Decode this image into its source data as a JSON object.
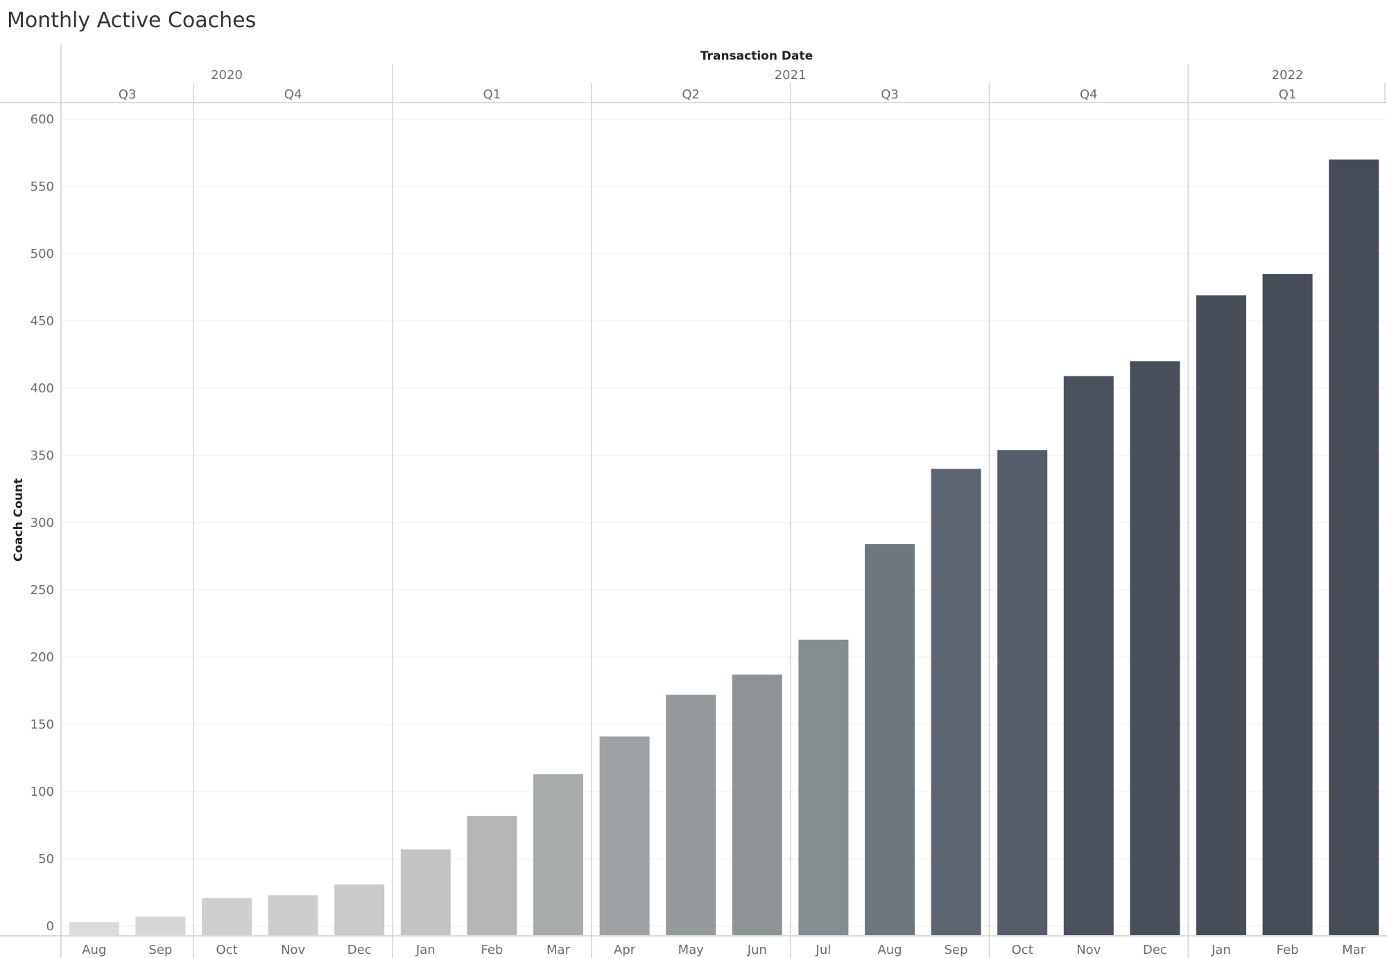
{
  "title": "Monthly Active Coaches",
  "chart_data": {
    "type": "bar",
    "title": "Monthly Active Coaches",
    "xlabel": "Transaction Date",
    "ylabel": "Coach Count",
    "ylim": [
      0,
      600
    ],
    "yticks": [
      0,
      50,
      100,
      150,
      200,
      250,
      300,
      350,
      400,
      450,
      500,
      550,
      600
    ],
    "grid": true,
    "years": [
      "2020",
      "2021",
      "2022"
    ],
    "quarters": [
      {
        "label": "Q3",
        "year": "2020"
      },
      {
        "label": "Q4",
        "year": "2020"
      },
      {
        "label": "Q1",
        "year": "2021"
      },
      {
        "label": "Q2",
        "year": "2021"
      },
      {
        "label": "Q3",
        "year": "2021"
      },
      {
        "label": "Q4",
        "year": "2021"
      },
      {
        "label": "Q1",
        "year": "2022"
      }
    ],
    "categories": [
      "Aug",
      "Sep",
      "Oct",
      "Nov",
      "Dec",
      "Jan",
      "Feb",
      "Mar",
      "Apr",
      "May",
      "Jun",
      "Jul",
      "Aug",
      "Sep",
      "Oct",
      "Nov",
      "Dec",
      "Jan",
      "Feb",
      "Mar"
    ],
    "values": [
      3,
      7,
      21,
      23,
      31,
      57,
      82,
      113,
      141,
      172,
      187,
      213,
      284,
      340,
      354,
      409,
      420,
      469,
      485,
      570
    ],
    "colors": [
      "#dcdcdc",
      "#d6d6d6",
      "#cfcfcf",
      "#cdcdcd",
      "#c9caca",
      "#c2c3c3",
      "#b5b6b7",
      "#a8abac",
      "#9ea2a4",
      "#94999b",
      "#8e9496",
      "#858d91",
      "#6e7780",
      "#5b6470",
      "#555e6a",
      "#4a525e",
      "#484f5b",
      "#474e5a",
      "#464d59",
      "#454c58"
    ]
  }
}
